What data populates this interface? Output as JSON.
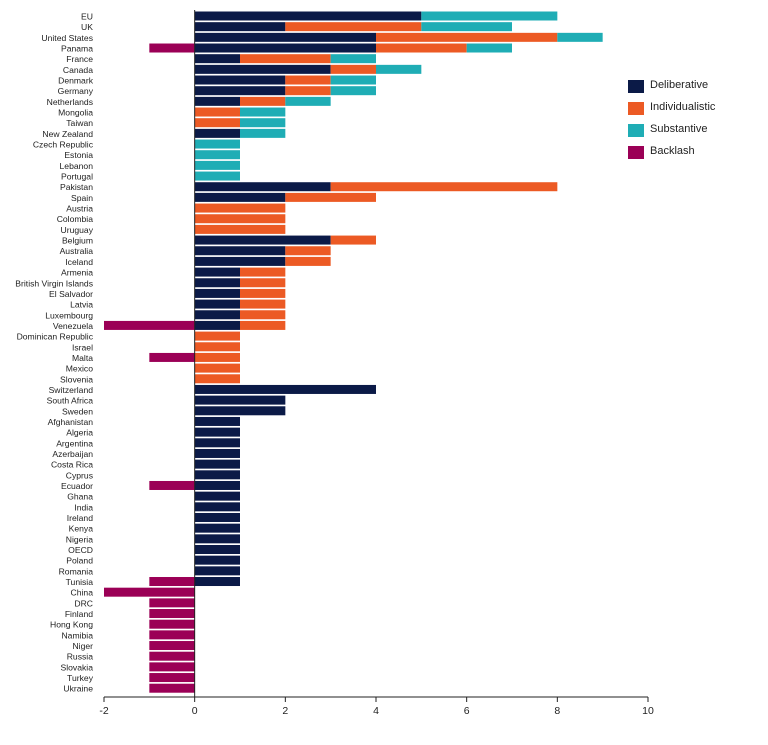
{
  "chart_data": {
    "type": "bar",
    "orientation": "horizontal",
    "stacked": true,
    "categories": [
      "EU",
      "UK",
      "United States",
      "Panama",
      "France",
      "Canada",
      "Denmark",
      "Germany",
      "Netherlands",
      "Mongolia",
      "Taiwan",
      "New Zealand",
      "Czech Republic",
      "Estonia",
      "Lebanon",
      "Portugal",
      "Pakistan",
      "Spain",
      "Austria",
      "Colombia",
      "Uruguay",
      "Belgium",
      "Australia",
      "Iceland",
      "Armenia",
      "British Virgin Islands",
      "El Salvador",
      "Latvia",
      "Luxembourg",
      "Venezuela",
      "Dominican Republic",
      "Israel",
      "Malta",
      "Mexico",
      "Slovenia",
      "Switzerland",
      "South Africa",
      "Sweden",
      "Afghanistan",
      "Algeria",
      "Argentina",
      "Azerbaijan",
      "Costa Rica",
      "Cyprus",
      "Ecuador",
      "Ghana",
      "India",
      "Ireland",
      "Kenya",
      "Nigeria",
      "OECD",
      "Poland",
      "Romania",
      "Tunisia",
      "China",
      "DRC",
      "Finland",
      "Hong Kong",
      "Namibia",
      "Niger",
      "Russia",
      "Slovakia",
      "Turkey",
      "Ukraine"
    ],
    "series": [
      {
        "name": "Deliberative",
        "color": "#0b1a47",
        "values": [
          5,
          2,
          4,
          4,
          1,
          3,
          2,
          2,
          1,
          0,
          0,
          1,
          0,
          0,
          0,
          0,
          3,
          2,
          0,
          0,
          0,
          3,
          2,
          2,
          1,
          1,
          1,
          1,
          1,
          1,
          0,
          0,
          0,
          0,
          0,
          4,
          2,
          2,
          1,
          1,
          1,
          1,
          1,
          1,
          1,
          1,
          1,
          1,
          1,
          1,
          1,
          1,
          1,
          1,
          0,
          0,
          0,
          0,
          0,
          0,
          0,
          0,
          0,
          0
        ]
      },
      {
        "name": "Individualistic",
        "color": "#ec5a24",
        "values": [
          0,
          3,
          4,
          2,
          2,
          1,
          1,
          1,
          1,
          1,
          1,
          0,
          0,
          0,
          0,
          0,
          5,
          2,
          2,
          2,
          2,
          1,
          1,
          1,
          1,
          1,
          1,
          1,
          1,
          1,
          1,
          1,
          1,
          1,
          1,
          0,
          0,
          0,
          0,
          0,
          0,
          0,
          0,
          0,
          0,
          0,
          0,
          0,
          0,
          0,
          0,
          0,
          0,
          0,
          0,
          0,
          0,
          0,
          0,
          0,
          0,
          0,
          0,
          0
        ]
      },
      {
        "name": "Substantive",
        "color": "#1fadb5",
        "values": [
          3,
          2,
          1,
          1,
          1,
          1,
          1,
          1,
          1,
          1,
          1,
          1,
          1,
          1,
          1,
          1,
          0,
          0,
          0,
          0,
          0,
          0,
          0,
          0,
          0,
          0,
          0,
          0,
          0,
          0,
          0,
          0,
          0,
          0,
          0,
          0,
          0,
          0,
          0,
          0,
          0,
          0,
          0,
          0,
          0,
          0,
          0,
          0,
          0,
          0,
          0,
          0,
          0,
          0,
          0,
          0,
          0,
          0,
          0,
          0,
          0,
          0,
          0,
          0
        ]
      },
      {
        "name": "Backlash",
        "color": "#9b0056",
        "values": [
          0,
          0,
          0,
          -1,
          0,
          0,
          0,
          0,
          0,
          0,
          0,
          0,
          0,
          0,
          0,
          0,
          0,
          0,
          0,
          0,
          0,
          0,
          0,
          0,
          0,
          0,
          0,
          0,
          0,
          -2,
          0,
          0,
          -1,
          0,
          0,
          0,
          0,
          0,
          0,
          0,
          0,
          0,
          0,
          0,
          -1,
          0,
          0,
          0,
          0,
          0,
          0,
          0,
          0,
          -1,
          -2,
          -1,
          -1,
          -1,
          -1,
          -1,
          -1,
          -1,
          -1,
          -1
        ]
      }
    ],
    "xlim": [
      -2,
      10
    ],
    "xticks": [
      "-2",
      "0",
      "2",
      "4",
      "6",
      "8",
      "10"
    ],
    "legend_position": "right",
    "grid": false
  }
}
